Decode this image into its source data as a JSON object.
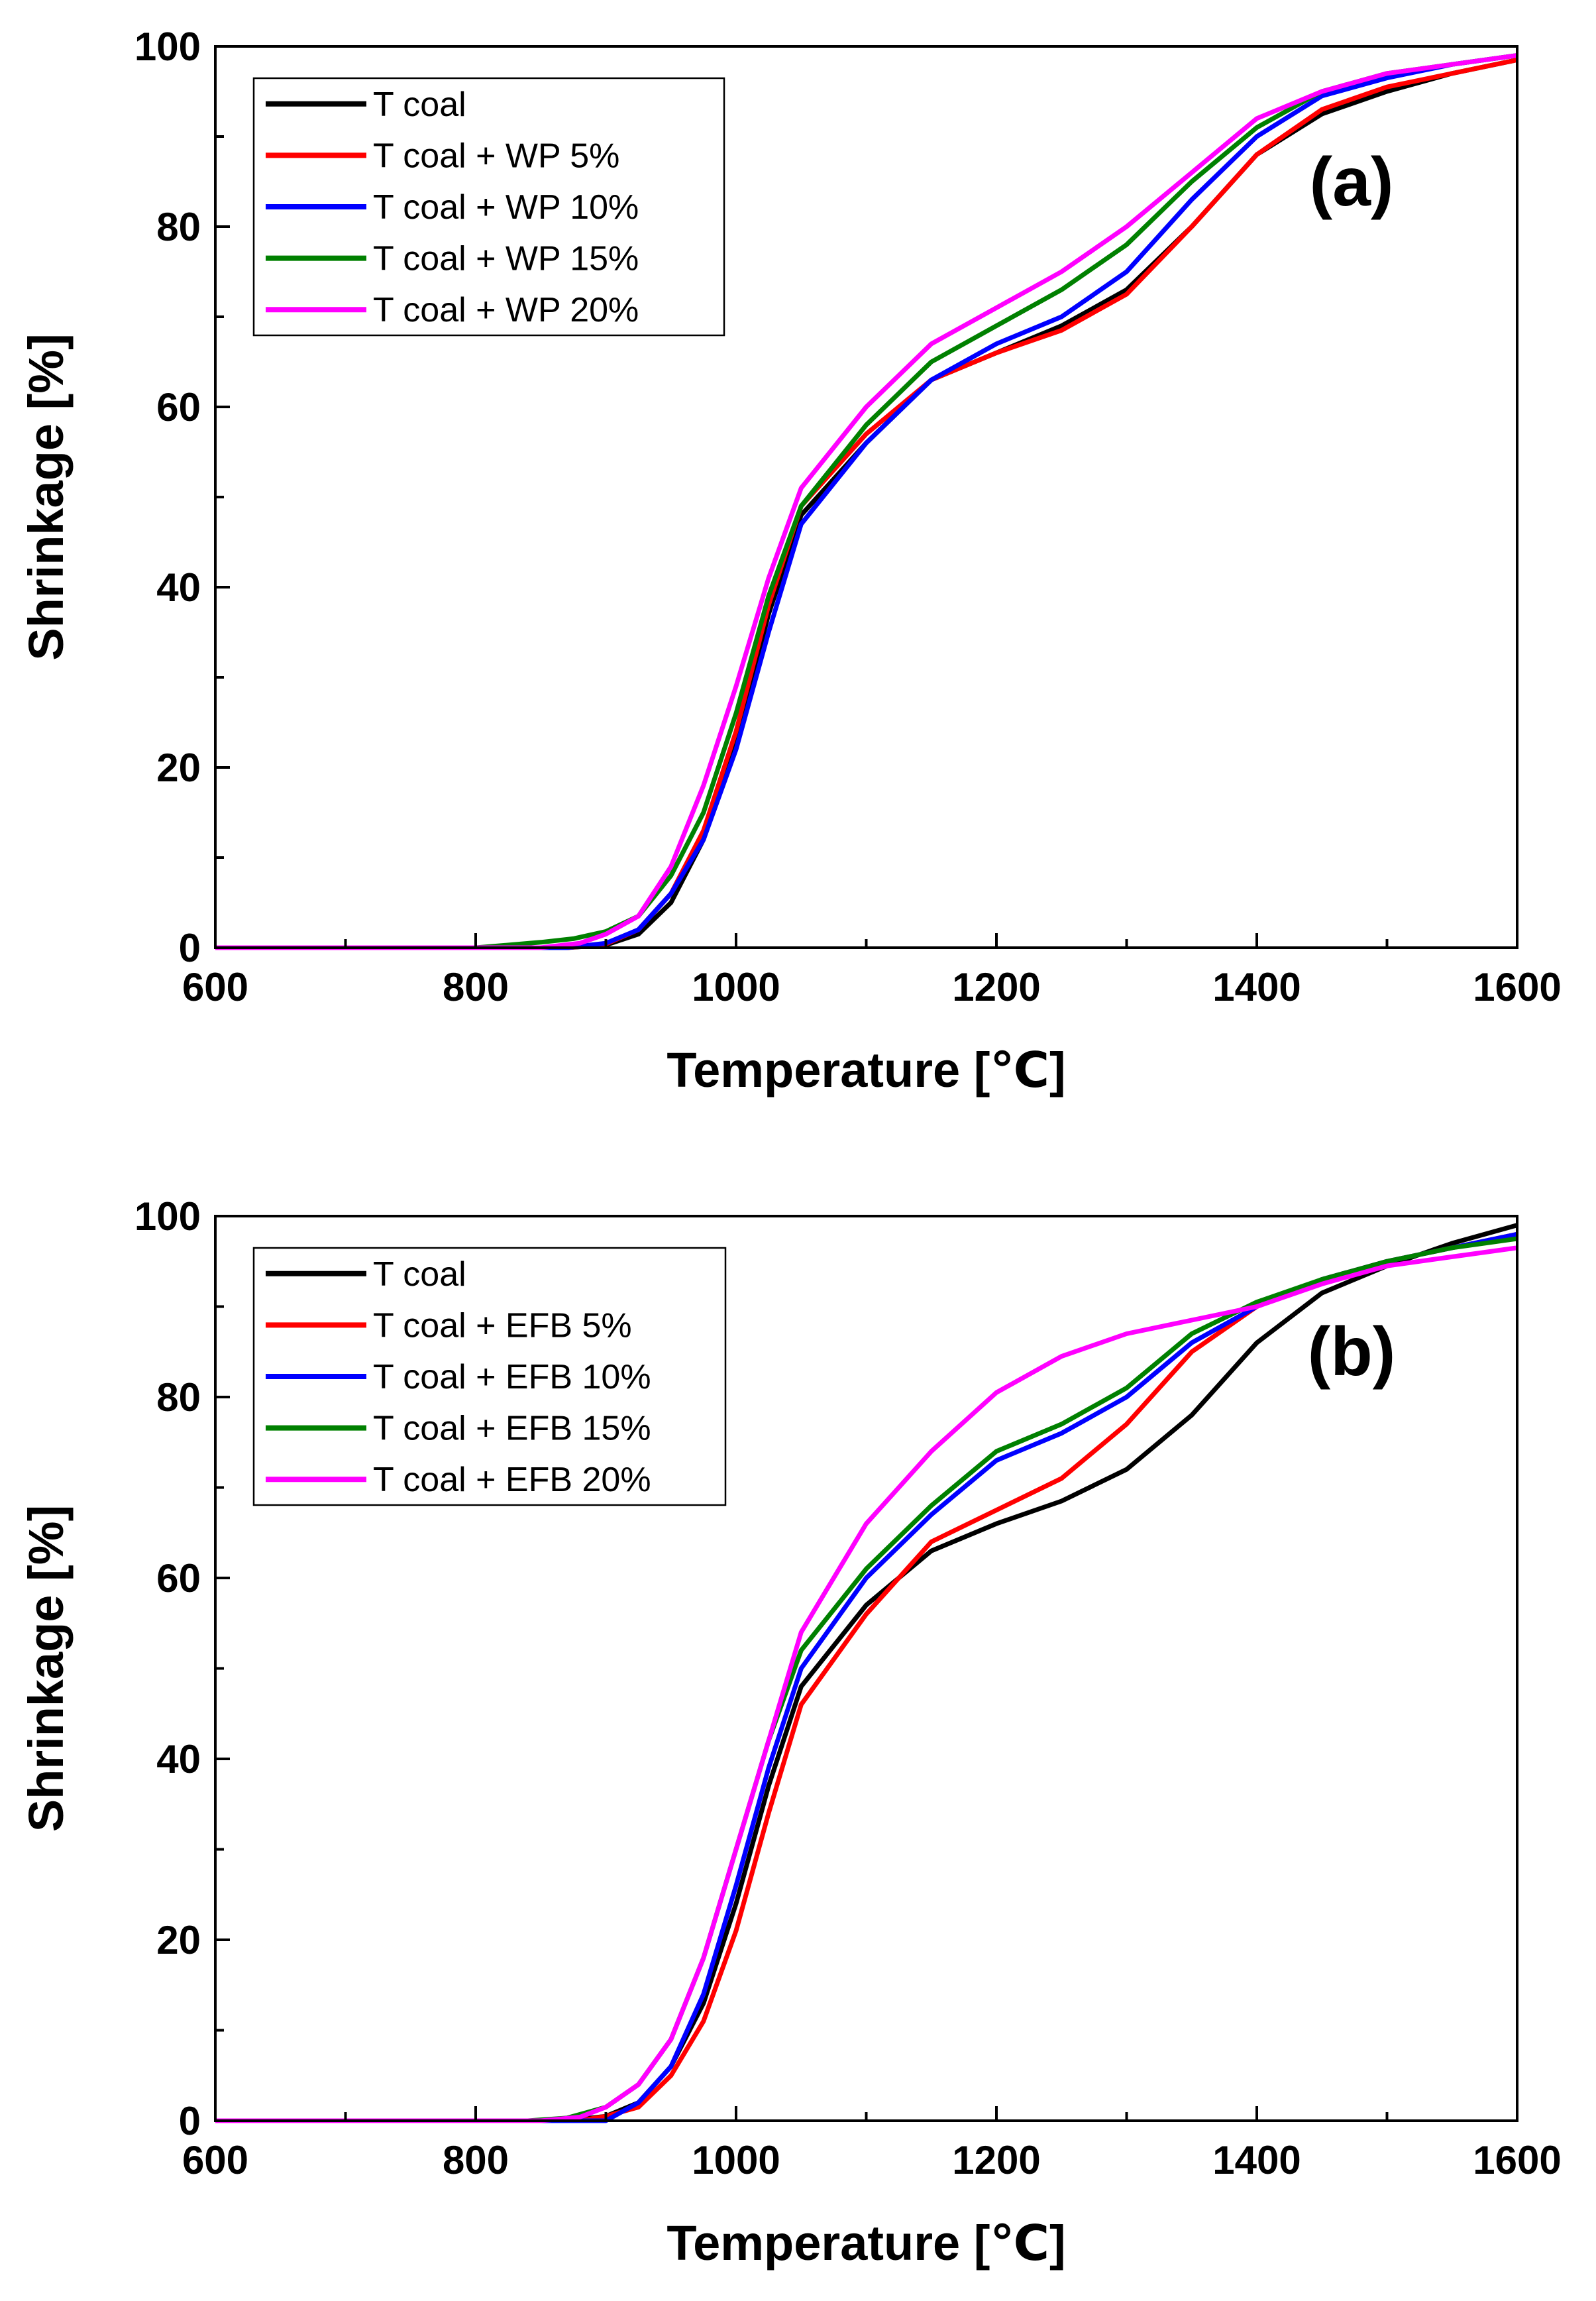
{
  "chart_data": [
    {
      "type": "line",
      "panel_label": "(a)",
      "xlabel": "Temperature [℃]",
      "ylabel": "Shrinkage [%]",
      "xlim": [
        600,
        1600
      ],
      "ylim": [
        0,
        100
      ],
      "xticks": [
        600,
        800,
        1000,
        1200,
        1400,
        1600
      ],
      "yticks": [
        0,
        20,
        40,
        60,
        80,
        100
      ],
      "legend_position": "top-left",
      "series": [
        {
          "name": "T coal",
          "color": "#000000",
          "x": [
            600,
            870,
            900,
            925,
            950,
            975,
            1000,
            1025,
            1050,
            1100,
            1150,
            1200,
            1250,
            1300,
            1350,
            1400,
            1450,
            1500,
            1550,
            1600
          ],
          "y": [
            0,
            0,
            0.3,
            1.5,
            5,
            12,
            23,
            37,
            48,
            56,
            63,
            66,
            69,
            73,
            80,
            88,
            92.5,
            95,
            97,
            98.5
          ]
        },
        {
          "name": "T coal + WP 5%",
          "color": "#ff0000",
          "x": [
            600,
            870,
            900,
            925,
            950,
            975,
            1000,
            1025,
            1050,
            1100,
            1150,
            1200,
            1250,
            1300,
            1350,
            1400,
            1450,
            1500,
            1550,
            1600
          ],
          "y": [
            0,
            0,
            0.4,
            2,
            6,
            13,
            24,
            38,
            49,
            57,
            63,
            66,
            68.5,
            72.5,
            80,
            88,
            93,
            95.5,
            97,
            98.5
          ]
        },
        {
          "name": "T coal + WP 10%",
          "color": "#0000ff",
          "x": [
            600,
            870,
            900,
            925,
            950,
            975,
            1000,
            1025,
            1050,
            1100,
            1150,
            1200,
            1250,
            1300,
            1350,
            1400,
            1450,
            1500,
            1550,
            1600
          ],
          "y": [
            0,
            0,
            0.5,
            2,
            6,
            12,
            22,
            35,
            47,
            56,
            63,
            67,
            70,
            75,
            83,
            90,
            94.5,
            96.5,
            98,
            99
          ]
        },
        {
          "name": "T coal + WP 15%",
          "color": "#008000",
          "x": [
            600,
            800,
            850,
            875,
            900,
            925,
            950,
            975,
            1000,
            1025,
            1050,
            1100,
            1150,
            1200,
            1250,
            1300,
            1350,
            1400,
            1450,
            1500,
            1550,
            1600
          ],
          "y": [
            0,
            0,
            0.6,
            1,
            1.8,
            3.5,
            8,
            15,
            26,
            39,
            49,
            58,
            65,
            69,
            73,
            78,
            85,
            91,
            95,
            97,
            98,
            99
          ]
        },
        {
          "name": "T coal + WP 20%",
          "color": "#ff00ff",
          "x": [
            600,
            850,
            880,
            900,
            925,
            950,
            975,
            1000,
            1025,
            1050,
            1100,
            1150,
            1200,
            1250,
            1300,
            1350,
            1400,
            1450,
            1500,
            1550,
            1600
          ],
          "y": [
            0,
            0,
            0.5,
            1.5,
            3.5,
            9,
            18,
            29,
            41,
            51,
            60,
            67,
            71,
            75,
            80,
            86,
            92,
            95,
            97,
            98,
            99
          ]
        }
      ]
    },
    {
      "type": "line",
      "panel_label": "(b)",
      "xlabel": "Temperature [℃]",
      "ylabel": "Shrinkage [%]",
      "xlim": [
        600,
        1600
      ],
      "ylim": [
        0,
        100
      ],
      "xticks": [
        600,
        800,
        1000,
        1200,
        1400,
        1600
      ],
      "yticks": [
        0,
        20,
        40,
        60,
        80,
        100
      ],
      "legend_position": "top-left",
      "series": [
        {
          "name": "T coal",
          "color": "#000000",
          "x": [
            600,
            870,
            900,
            925,
            950,
            975,
            1000,
            1025,
            1050,
            1100,
            1150,
            1200,
            1250,
            1300,
            1350,
            1400,
            1450,
            1500,
            1550,
            1600
          ],
          "y": [
            0,
            0,
            0.5,
            2,
            6,
            13,
            24,
            37,
            48,
            57,
            63,
            66,
            68.5,
            72,
            78,
            86,
            91.5,
            94.5,
            97,
            99
          ]
        },
        {
          "name": "T coal + EFB 5%",
          "color": "#ff0000",
          "x": [
            600,
            880,
            900,
            925,
            950,
            975,
            1000,
            1025,
            1050,
            1100,
            1150,
            1200,
            1250,
            1300,
            1350,
            1400,
            1450,
            1500,
            1550,
            1600
          ],
          "y": [
            0,
            0,
            0.5,
            1.5,
            5,
            11,
            21,
            34,
            46,
            56,
            64,
            67.5,
            71,
            77,
            85,
            90,
            93,
            95,
            96.5,
            98
          ]
        },
        {
          "name": "T coal + EFB 10%",
          "color": "#0000ff",
          "x": [
            600,
            900,
            925,
            950,
            975,
            1000,
            1025,
            1050,
            1100,
            1150,
            1200,
            1250,
            1300,
            1350,
            1400,
            1450,
            1500,
            1550,
            1600
          ],
          "y": [
            0,
            0,
            2,
            6,
            14,
            26,
            39,
            50,
            60,
            67,
            73,
            76,
            80,
            86,
            90,
            93,
            95,
            96.5,
            98
          ]
        },
        {
          "name": "T coal + EFB 15%",
          "color": "#008000",
          "x": [
            600,
            840,
            870,
            900,
            925,
            950,
            975,
            1000,
            1025,
            1050,
            1100,
            1150,
            1200,
            1250,
            1300,
            1350,
            1400,
            1450,
            1500,
            1550,
            1600
          ],
          "y": [
            0,
            0,
            0.3,
            1.5,
            4,
            9,
            18,
            30,
            42,
            52,
            61,
            68,
            74,
            77,
            81,
            87,
            90.5,
            93,
            95,
            96.5,
            97.5
          ]
        },
        {
          "name": "T coal + EFB 20%",
          "color": "#ff00ff",
          "x": [
            600,
            850,
            880,
            900,
            925,
            950,
            975,
            1000,
            1025,
            1050,
            1100,
            1150,
            1200,
            1250,
            1300,
            1350,
            1400,
            1450,
            1500,
            1550,
            1600
          ],
          "y": [
            0,
            0,
            0.4,
            1.5,
            4,
            9,
            18,
            30,
            42,
            54,
            66,
            74,
            80.5,
            84.5,
            87,
            88.5,
            90,
            92.5,
            94.5,
            95.5,
            96.5
          ]
        }
      ]
    }
  ]
}
